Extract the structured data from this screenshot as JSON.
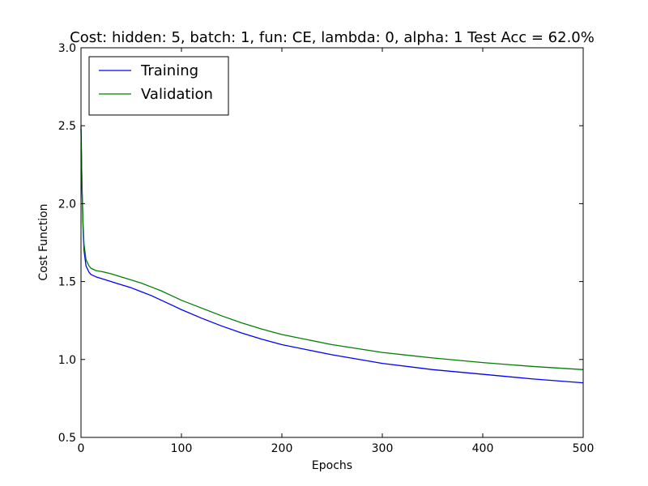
{
  "chart_data": {
    "type": "line",
    "title": "Cost: hidden: 5, batch: 1, fun: CE, lambda: 0, alpha: 1  Test Acc = 62.0%",
    "xlabel": "Epochs",
    "ylabel": "Cost Function",
    "xlim": [
      0,
      500
    ],
    "ylim": [
      0.5,
      3.0
    ],
    "xticks": [
      0,
      100,
      200,
      300,
      400,
      500
    ],
    "yticks": [
      0.5,
      1.0,
      1.5,
      2.0,
      2.5,
      3.0
    ],
    "xtick_labels": [
      "0",
      "100",
      "200",
      "300",
      "400",
      "500"
    ],
    "ytick_labels": [
      "0.5",
      "1.0",
      "1.5",
      "2.0",
      "2.5",
      "3.0"
    ],
    "grid": false,
    "legend_position": "top-left",
    "series": [
      {
        "name": "Training",
        "color": "#0000ff",
        "x": [
          0,
          1,
          2,
          3,
          5,
          8,
          10,
          15,
          20,
          30,
          40,
          50,
          60,
          70,
          80,
          90,
          100,
          120,
          140,
          160,
          180,
          200,
          250,
          300,
          350,
          400,
          450,
          500
        ],
        "y": [
          2.48,
          2.1,
          1.85,
          1.7,
          1.6,
          1.56,
          1.545,
          1.53,
          1.52,
          1.5,
          1.48,
          1.46,
          1.435,
          1.41,
          1.38,
          1.35,
          1.32,
          1.265,
          1.215,
          1.17,
          1.13,
          1.095,
          1.03,
          0.975,
          0.935,
          0.905,
          0.875,
          0.85
        ]
      },
      {
        "name": "Validation",
        "color": "#008000",
        "x": [
          0,
          1,
          2,
          3,
          5,
          8,
          10,
          15,
          20,
          30,
          40,
          50,
          60,
          70,
          80,
          90,
          100,
          120,
          140,
          160,
          180,
          200,
          250,
          300,
          350,
          400,
          450,
          500
        ],
        "y": [
          2.5,
          2.12,
          1.88,
          1.74,
          1.64,
          1.6,
          1.585,
          1.57,
          1.565,
          1.55,
          1.53,
          1.51,
          1.49,
          1.465,
          1.44,
          1.41,
          1.38,
          1.33,
          1.28,
          1.235,
          1.195,
          1.16,
          1.095,
          1.045,
          1.01,
          0.98,
          0.955,
          0.935
        ]
      }
    ]
  }
}
